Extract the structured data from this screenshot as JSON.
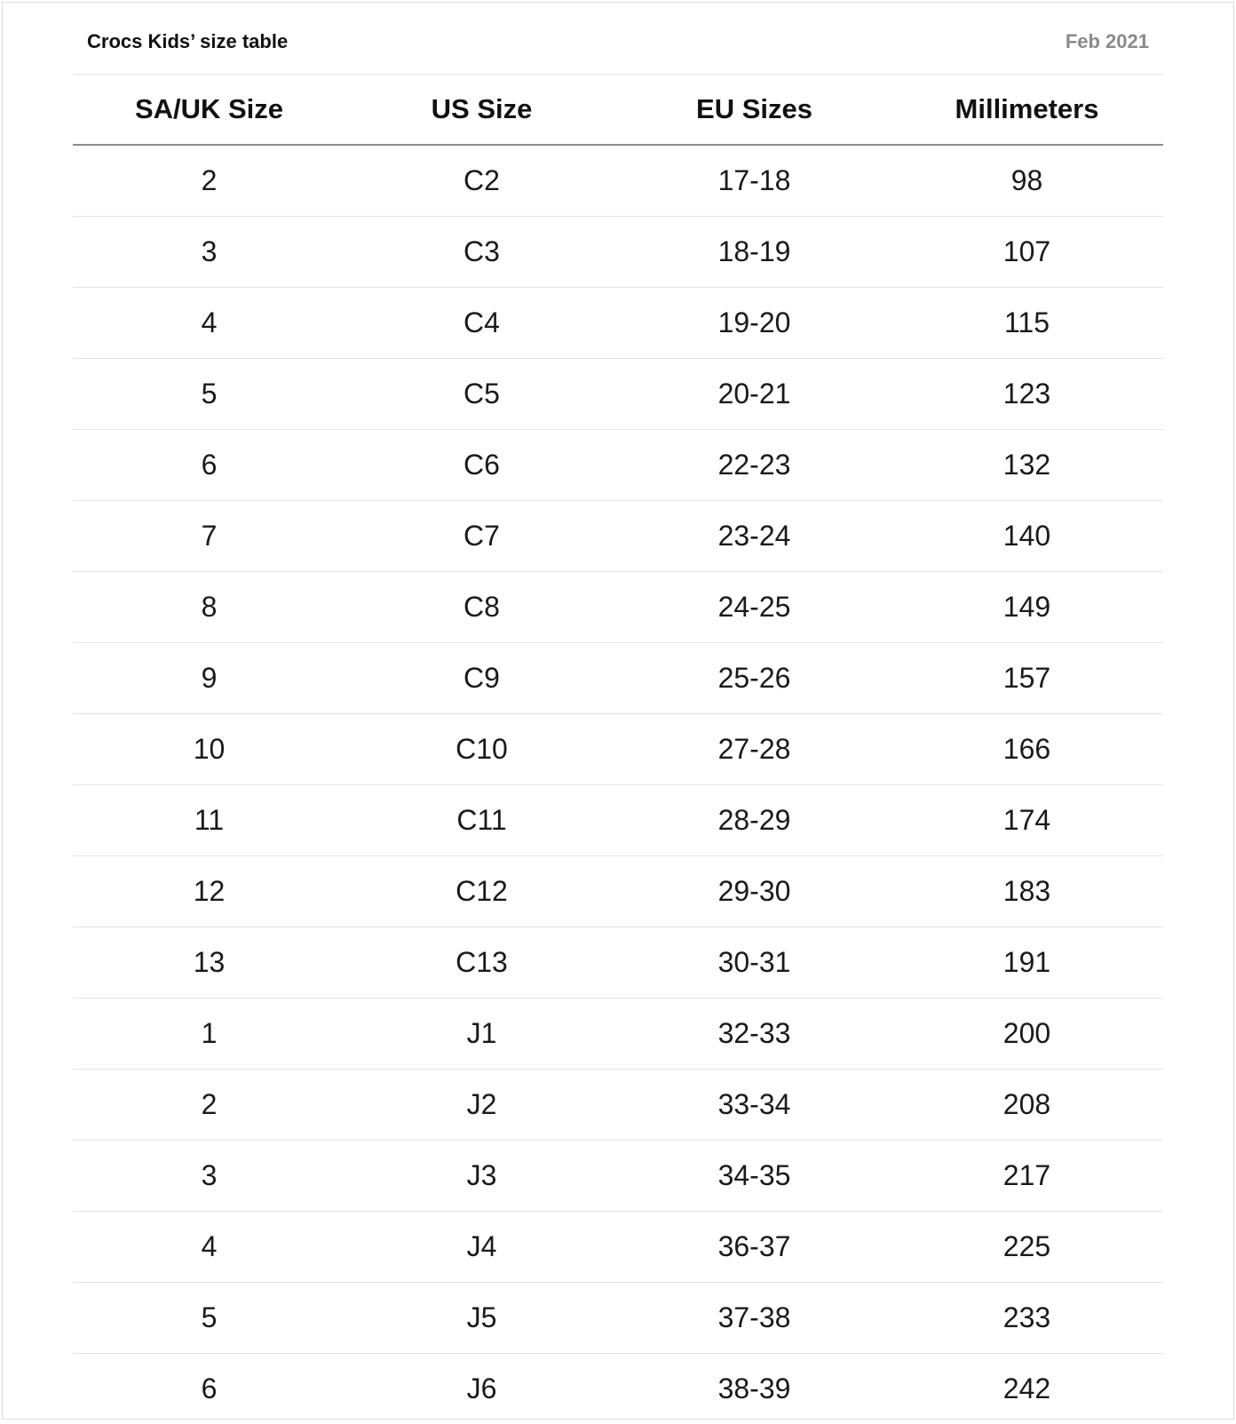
{
  "title": "Crocs Kids’ size table",
  "date": "Feb 2021",
  "columns": [
    "SA/UK Size",
    "US Size",
    "EU Sizes",
    "Millimeters"
  ],
  "rows": [
    [
      "2",
      "C2",
      "17-18",
      "98"
    ],
    [
      "3",
      "C3",
      "18-19",
      "107"
    ],
    [
      "4",
      "C4",
      "19-20",
      "115"
    ],
    [
      "5",
      "C5",
      "20-21",
      "123"
    ],
    [
      "6",
      "C6",
      "22-23",
      "132"
    ],
    [
      "7",
      "C7",
      "23-24",
      "140"
    ],
    [
      "8",
      "C8",
      "24-25",
      "149"
    ],
    [
      "9",
      "C9",
      "25-26",
      "157"
    ],
    [
      "10",
      "C10",
      "27-28",
      "166"
    ],
    [
      "11",
      "C11",
      "28-29",
      "174"
    ],
    [
      "12",
      "C12",
      "29-30",
      "183"
    ],
    [
      "13",
      "C13",
      "30-31",
      "191"
    ],
    [
      "1",
      "J1",
      "32-33",
      "200"
    ],
    [
      "2",
      "J2",
      "33-34",
      "208"
    ],
    [
      "3",
      "J3",
      "34-35",
      "217"
    ],
    [
      "4",
      "J4",
      "36-37",
      "225"
    ],
    [
      "5",
      "J5",
      "37-38",
      "233"
    ],
    [
      "6",
      "J6",
      "38-39",
      "242"
    ]
  ]
}
